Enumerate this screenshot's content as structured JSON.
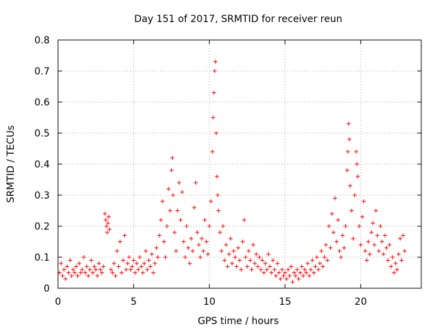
{
  "chart_data": {
    "type": "scatter",
    "title": "Day 151 of 2017, SRMTID for receiver reun",
    "xlabel": "GPS time / hours",
    "ylabel": "SRMTID / TECUs",
    "xlim": [
      0,
      24
    ],
    "ylim": [
      0,
      0.8
    ],
    "x_ticks": [
      "0",
      "5",
      "10",
      "15",
      "20"
    ],
    "x_tick_values": [
      0,
      5,
      10,
      15,
      20
    ],
    "y_ticks": [
      "0",
      "0.1",
      "0.2",
      "0.3",
      "0.4",
      "0.5",
      "0.6",
      "0.7",
      "0.8"
    ],
    "y_tick_values": [
      0,
      0.1,
      0.2,
      0.3,
      0.4,
      0.5,
      0.6,
      0.7,
      0.8
    ],
    "grid": true,
    "marker": "+",
    "color": "#ff0000",
    "series": [
      {
        "name": "SRMTID",
        "points": [
          [
            0.1,
            0.05
          ],
          [
            0.2,
            0.08
          ],
          [
            0.3,
            0.04
          ],
          [
            0.4,
            0.06
          ],
          [
            0.5,
            0.03
          ],
          [
            0.6,
            0.07
          ],
          [
            0.7,
            0.05
          ],
          [
            0.8,
            0.09
          ],
          [
            0.9,
            0.04
          ],
          [
            1.0,
            0.06
          ],
          [
            1.1,
            0.05
          ],
          [
            1.2,
            0.07
          ],
          [
            1.3,
            0.04
          ],
          [
            1.4,
            0.08
          ],
          [
            1.5,
            0.05
          ],
          [
            1.6,
            0.06
          ],
          [
            1.7,
            0.1
          ],
          [
            1.8,
            0.05
          ],
          [
            1.9,
            0.07
          ],
          [
            2.0,
            0.04
          ],
          [
            2.1,
            0.06
          ],
          [
            2.2,
            0.09
          ],
          [
            2.3,
            0.05
          ],
          [
            2.4,
            0.07
          ],
          [
            2.5,
            0.06
          ],
          [
            2.6,
            0.04
          ],
          [
            2.7,
            0.08
          ],
          [
            2.8,
            0.06
          ],
          [
            2.9,
            0.05
          ],
          [
            3.0,
            0.07
          ],
          [
            3.1,
            0.24
          ],
          [
            3.15,
            0.22
          ],
          [
            3.2,
            0.2
          ],
          [
            3.25,
            0.18
          ],
          [
            3.3,
            0.21
          ],
          [
            3.35,
            0.23
          ],
          [
            3.4,
            0.19
          ],
          [
            3.5,
            0.06
          ],
          [
            3.6,
            0.05
          ],
          [
            3.7,
            0.08
          ],
          [
            3.8,
            0.04
          ],
          [
            3.9,
            0.12
          ],
          [
            4.0,
            0.07
          ],
          [
            4.1,
            0.15
          ],
          [
            4.2,
            0.05
          ],
          [
            4.3,
            0.09
          ],
          [
            4.4,
            0.17
          ],
          [
            4.5,
            0.06
          ],
          [
            4.6,
            0.08
          ],
          [
            4.7,
            0.1
          ],
          [
            4.8,
            0.06
          ],
          [
            4.9,
            0.07
          ],
          [
            5.0,
            0.09
          ],
          [
            5.1,
            0.05
          ],
          [
            5.2,
            0.08
          ],
          [
            5.3,
            0.06
          ],
          [
            5.4,
            0.1
          ],
          [
            5.5,
            0.07
          ],
          [
            5.6,
            0.05
          ],
          [
            5.7,
            0.08
          ],
          [
            5.8,
            0.12
          ],
          [
            5.9,
            0.06
          ],
          [
            6.0,
            0.09
          ],
          [
            6.1,
            0.07
          ],
          [
            6.2,
            0.11
          ],
          [
            6.3,
            0.05
          ],
          [
            6.4,
            0.08
          ],
          [
            6.5,
            0.13
          ],
          [
            6.6,
            0.1
          ],
          [
            6.7,
            0.17
          ],
          [
            6.8,
            0.22
          ],
          [
            6.9,
            0.28
          ],
          [
            7.0,
            0.15
          ],
          [
            7.1,
            0.1
          ],
          [
            7.2,
            0.2
          ],
          [
            7.3,
            0.32
          ],
          [
            7.4,
            0.25
          ],
          [
            7.5,
            0.38
          ],
          [
            7.55,
            0.42
          ],
          [
            7.6,
            0.3
          ],
          [
            7.7,
            0.18
          ],
          [
            7.8,
            0.12
          ],
          [
            7.9,
            0.25
          ],
          [
            8.0,
            0.34
          ],
          [
            8.1,
            0.22
          ],
          [
            8.2,
            0.31
          ],
          [
            8.3,
            0.15
          ],
          [
            8.4,
            0.1
          ],
          [
            8.5,
            0.2
          ],
          [
            8.6,
            0.13
          ],
          [
            8.7,
            0.08
          ],
          [
            8.8,
            0.16
          ],
          [
            8.9,
            0.12
          ],
          [
            9.0,
            0.26
          ],
          [
            9.1,
            0.34
          ],
          [
            9.2,
            0.18
          ],
          [
            9.3,
            0.14
          ],
          [
            9.4,
            0.1
          ],
          [
            9.5,
            0.16
          ],
          [
            9.6,
            0.12
          ],
          [
            9.7,
            0.22
          ],
          [
            9.8,
            0.15
          ],
          [
            9.9,
            0.11
          ],
          [
            10.0,
            0.2
          ],
          [
            10.1,
            0.28
          ],
          [
            10.2,
            0.44
          ],
          [
            10.25,
            0.55
          ],
          [
            10.3,
            0.63
          ],
          [
            10.35,
            0.7
          ],
          [
            10.4,
            0.73
          ],
          [
            10.45,
            0.5
          ],
          [
            10.5,
            0.36
          ],
          [
            10.55,
            0.3
          ],
          [
            10.6,
            0.25
          ],
          [
            10.7,
            0.18
          ],
          [
            10.8,
            0.12
          ],
          [
            10.9,
            0.2
          ],
          [
            11.0,
            0.09
          ],
          [
            11.1,
            0.14
          ],
          [
            11.2,
            0.07
          ],
          [
            11.3,
            0.11
          ],
          [
            11.4,
            0.16
          ],
          [
            11.5,
            0.08
          ],
          [
            11.6,
            0.12
          ],
          [
            11.7,
            0.1
          ],
          [
            11.8,
            0.07
          ],
          [
            11.9,
            0.13
          ],
          [
            12.0,
            0.09
          ],
          [
            12.1,
            0.06
          ],
          [
            12.2,
            0.15
          ],
          [
            12.3,
            0.22
          ],
          [
            12.4,
            0.1
          ],
          [
            12.5,
            0.07
          ],
          [
            12.6,
            0.12
          ],
          [
            12.7,
            0.09
          ],
          [
            12.8,
            0.06
          ],
          [
            12.9,
            0.14
          ],
          [
            13.0,
            0.08
          ],
          [
            13.1,
            0.11
          ],
          [
            13.2,
            0.07
          ],
          [
            13.3,
            0.1
          ],
          [
            13.4,
            0.06
          ],
          [
            13.5,
            0.09
          ],
          [
            13.6,
            0.05
          ],
          [
            13.7,
            0.08
          ],
          [
            13.8,
            0.06
          ],
          [
            13.9,
            0.11
          ],
          [
            14.0,
            0.07
          ],
          [
            14.1,
            0.05
          ],
          [
            14.2,
            0.09
          ],
          [
            14.3,
            0.06
          ],
          [
            14.4,
            0.04
          ],
          [
            14.5,
            0.08
          ],
          [
            14.6,
            0.05
          ],
          [
            14.7,
            0.03
          ],
          [
            14.8,
            0.06
          ],
          [
            14.9,
            0.04
          ],
          [
            15.0,
            0.05
          ],
          [
            15.1,
            0.03
          ],
          [
            15.2,
            0.06
          ],
          [
            15.3,
            0.04
          ],
          [
            15.4,
            0.07
          ],
          [
            15.5,
            0.02
          ],
          [
            15.6,
            0.05
          ],
          [
            15.7,
            0.04
          ],
          [
            15.8,
            0.06
          ],
          [
            15.9,
            0.03
          ],
          [
            16.0,
            0.05
          ],
          [
            16.1,
            0.07
          ],
          [
            16.2,
            0.04
          ],
          [
            16.3,
            0.06
          ],
          [
            16.4,
            0.05
          ],
          [
            16.5,
            0.08
          ],
          [
            16.6,
            0.04
          ],
          [
            16.7,
            0.06
          ],
          [
            16.8,
            0.09
          ],
          [
            16.9,
            0.05
          ],
          [
            17.0,
            0.07
          ],
          [
            17.1,
            0.1
          ],
          [
            17.2,
            0.06
          ],
          [
            17.3,
            0.08
          ],
          [
            17.4,
            0.12
          ],
          [
            17.5,
            0.07
          ],
          [
            17.6,
            0.1
          ],
          [
            17.7,
            0.14
          ],
          [
            17.8,
            0.09
          ],
          [
            17.9,
            0.2
          ],
          [
            18.0,
            0.13
          ],
          [
            18.1,
            0.24
          ],
          [
            18.2,
            0.18
          ],
          [
            18.3,
            0.29
          ],
          [
            18.4,
            0.15
          ],
          [
            18.5,
            0.22
          ],
          [
            18.6,
            0.12
          ],
          [
            18.7,
            0.1
          ],
          [
            18.8,
            0.17
          ],
          [
            18.9,
            0.13
          ],
          [
            19.0,
            0.2
          ],
          [
            19.1,
            0.38
          ],
          [
            19.15,
            0.44
          ],
          [
            19.2,
            0.53
          ],
          [
            19.25,
            0.48
          ],
          [
            19.3,
            0.33
          ],
          [
            19.4,
            0.25
          ],
          [
            19.5,
            0.16
          ],
          [
            19.6,
            0.3
          ],
          [
            19.7,
            0.44
          ],
          [
            19.75,
            0.4
          ],
          [
            19.8,
            0.36
          ],
          [
            19.9,
            0.2
          ],
          [
            20.0,
            0.14
          ],
          [
            20.1,
            0.23
          ],
          [
            20.2,
            0.28
          ],
          [
            20.3,
            0.12
          ],
          [
            20.4,
            0.09
          ],
          [
            20.5,
            0.15
          ],
          [
            20.6,
            0.11
          ],
          [
            20.7,
            0.18
          ],
          [
            20.8,
            0.21
          ],
          [
            20.9,
            0.14
          ],
          [
            21.0,
            0.25
          ],
          [
            21.1,
            0.17
          ],
          [
            21.2,
            0.12
          ],
          [
            21.3,
            0.2
          ],
          [
            21.4,
            0.15
          ],
          [
            21.5,
            0.11
          ],
          [
            21.6,
            0.17
          ],
          [
            21.7,
            0.13
          ],
          [
            21.8,
            0.09
          ],
          [
            21.9,
            0.14
          ],
          [
            22.0,
            0.07
          ],
          [
            22.1,
            0.1
          ],
          [
            22.2,
            0.05
          ],
          [
            22.3,
            0.08
          ],
          [
            22.4,
            0.06
          ],
          [
            22.5,
            0.11
          ],
          [
            22.6,
            0.16
          ],
          [
            22.7,
            0.09
          ],
          [
            22.8,
            0.17
          ],
          [
            22.9,
            0.12
          ]
        ]
      }
    ]
  }
}
